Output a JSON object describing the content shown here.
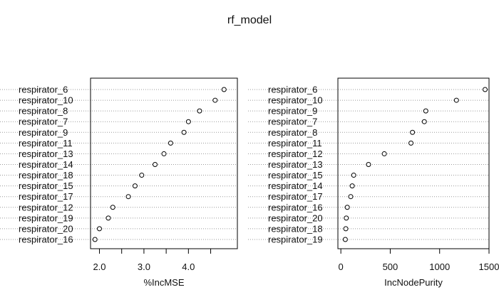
{
  "chart_data": [
    {
      "type": "scatter",
      "title": "rf_model",
      "xlabel": "%IncMSE",
      "ylabel": "",
      "xlim": [
        1.8,
        5.1
      ],
      "xticks": [
        2.0,
        2.5,
        3.0,
        3.5,
        4.0,
        4.5
      ],
      "xtick_labels": [
        "2.0",
        "",
        "3.0",
        "",
        "4.0",
        ""
      ],
      "categories": [
        "respirator_6",
        "respirator_10",
        "respirator_8",
        "respirator_7",
        "respirator_9",
        "respirator_11",
        "respirator_13",
        "respirator_14",
        "respirator_18",
        "respirator_15",
        "respirator_17",
        "respirator_12",
        "respirator_19",
        "respirator_20",
        "respirator_16"
      ],
      "values": [
        4.8,
        4.6,
        4.25,
        4.0,
        3.9,
        3.6,
        3.45,
        3.25,
        2.95,
        2.8,
        2.65,
        2.3,
        2.2,
        2.0,
        1.9
      ],
      "grid": "dotted-horizontal"
    },
    {
      "type": "scatter",
      "title": "",
      "xlabel": "IncNodePurity",
      "ylabel": "",
      "xlim": [
        -30,
        1500
      ],
      "xticks": [
        0,
        500,
        1000,
        1500
      ],
      "xtick_labels": [
        "0",
        "500",
        "1000",
        "1500"
      ],
      "categories": [
        "respirator_6",
        "respirator_10",
        "respirator_9",
        "respirator_7",
        "respirator_8",
        "respirator_11",
        "respirator_12",
        "respirator_13",
        "respirator_15",
        "respirator_14",
        "respirator_17",
        "respirator_16",
        "respirator_20",
        "respirator_18",
        "respirator_19"
      ],
      "values": [
        1460,
        1170,
        860,
        845,
        725,
        710,
        440,
        280,
        130,
        115,
        100,
        65,
        55,
        50,
        45
      ],
      "grid": "dotted-horizontal"
    }
  ]
}
